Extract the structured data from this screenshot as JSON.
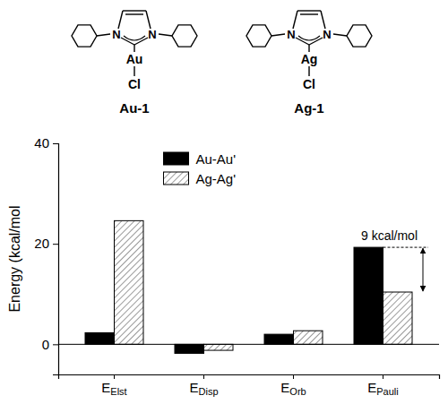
{
  "structures": [
    {
      "label": "Au-1",
      "metal": "Au",
      "halide": "Cl",
      "ring_atoms": [
        "N",
        "N"
      ]
    },
    {
      "label": "Ag-1",
      "metal": "Ag",
      "halide": "Cl",
      "ring_atoms": [
        "N",
        "N"
      ]
    }
  ],
  "chart_data": {
    "type": "bar",
    "y_label": "Energy (kcal/mol",
    "categories": [
      "EElst",
      "EDisp",
      "EOrb",
      "EPauli"
    ],
    "series": [
      {
        "name": "Au-Au'",
        "color": "#000000",
        "values": [
          2.3,
          -1.8,
          2.0,
          19.3
        ]
      },
      {
        "name": "Ag-Ag'",
        "color": "#808080",
        "values": [
          24.6,
          -1.2,
          2.7,
          10.4
        ]
      }
    ],
    "ylim": [
      -6,
      40
    ],
    "yticks": [
      0,
      20,
      40
    ],
    "legend": "upper center",
    "annotations": [
      {
        "text": "9 kcal/mol"
      }
    ]
  }
}
